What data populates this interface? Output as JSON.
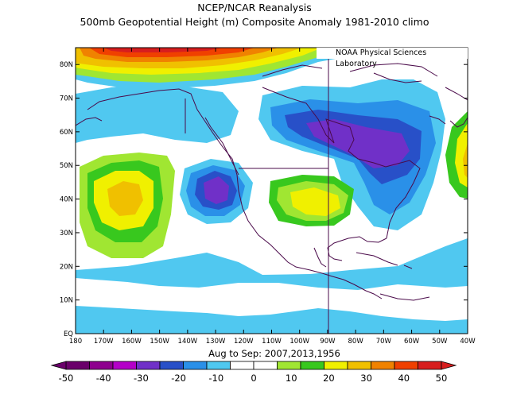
{
  "title": "NCEP/NCAR Reanalysis",
  "subtitle": "500mb Geopotential Height (m) Composite Anomaly 1981-2010 climo",
  "credit": "NOAA Physical Sciences Laboratory",
  "period": "Aug to Sep: 2007,2013,1956",
  "lon_ticks": [
    "180",
    "170W",
    "160W",
    "150W",
    "140W",
    "130W",
    "120W",
    "110W",
    "100W",
    "90W",
    "80W",
    "70W",
    "60W",
    "50W",
    "40W"
  ],
  "lat_ticks": [
    "EQ",
    "10N",
    "20N",
    "30N",
    "40N",
    "50N",
    "60N",
    "70N",
    "80N"
  ],
  "colorbar": {
    "labels": [
      "-50",
      "-40",
      "-30",
      "-20",
      "-10",
      "0",
      "10",
      "20",
      "30",
      "40",
      "50"
    ],
    "colors": [
      "#6a006a",
      "#8e008e",
      "#b400c8",
      "#7030c8",
      "#2850c8",
      "#2a90e8",
      "#50c8f0",
      "#ffffff",
      "#ffffff",
      "#a0e632",
      "#38c81e",
      "#f0f000",
      "#f0c000",
      "#f08200",
      "#f04000",
      "#d71e1e"
    ]
  }
}
